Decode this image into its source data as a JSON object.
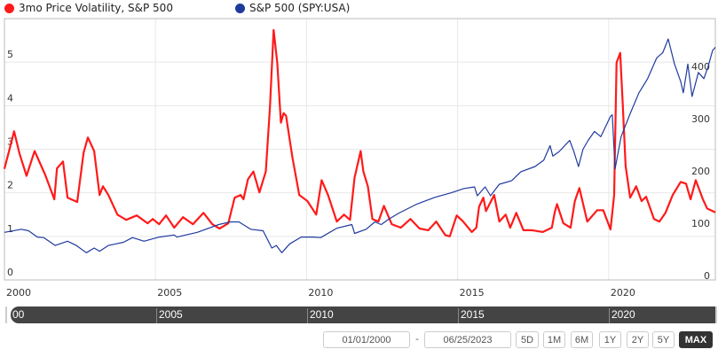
{
  "legend": [
    {
      "label": "3mo Price Volatility, S&P 500",
      "color": "#ff1a1a"
    },
    {
      "label": "S&P 500 (SPY:USA)",
      "color": "#1f3a9e"
    }
  ],
  "navigator": {
    "labels": [
      "00",
      "2005",
      "2010",
      "2015",
      "2020"
    ]
  },
  "controls": {
    "start_date": "01/01/2000",
    "separator": "-",
    "end_date": "06/25/2023",
    "ranges": [
      "5D",
      "1M",
      "6M",
      "1Y",
      "2Y",
      "5Y",
      "MAX"
    ],
    "active_range": "MAX"
  },
  "chart_data": {
    "type": "line",
    "grid": true,
    "xlim": [
      2000,
      2023.53
    ],
    "x_ticks": [
      2000,
      2005,
      2010,
      2015,
      2020
    ],
    "x_tick_labels": [
      "2000",
      "2005",
      "2010",
      "2015",
      "2020"
    ],
    "y_left": {
      "lim": [
        0,
        6
      ],
      "ticks": [
        0,
        1,
        2,
        3,
        4,
        5
      ],
      "tick_labels": [
        "0",
        "1",
        "2",
        "3",
        "4",
        "5"
      ]
    },
    "y_right": {
      "lim": [
        0,
        500
      ],
      "ticks": [
        0,
        100,
        200,
        300,
        400
      ],
      "tick_labels": [
        "0",
        "100",
        "200",
        "300",
        "400"
      ]
    },
    "series": [
      {
        "name": "3mo Price Volatility, S&P 500",
        "axis": "left",
        "color": "#ff1a1a",
        "points": [
          [
            2000.0,
            2.55
          ],
          [
            2000.32,
            3.41
          ],
          [
            2000.5,
            2.9
          ],
          [
            2000.73,
            2.39
          ],
          [
            2001.0,
            2.96
          ],
          [
            2001.35,
            2.41
          ],
          [
            2001.65,
            1.85
          ],
          [
            2001.74,
            2.56
          ],
          [
            2001.94,
            2.72
          ],
          [
            2002.09,
            1.89
          ],
          [
            2002.41,
            1.79
          ],
          [
            2002.62,
            2.92
          ],
          [
            2002.76,
            3.27
          ],
          [
            2002.97,
            2.96
          ],
          [
            2003.15,
            1.95
          ],
          [
            2003.26,
            2.15
          ],
          [
            2003.44,
            1.95
          ],
          [
            2003.74,
            1.5
          ],
          [
            2004.03,
            1.38
          ],
          [
            2004.38,
            1.48
          ],
          [
            2004.74,
            1.3
          ],
          [
            2004.91,
            1.4
          ],
          [
            2005.12,
            1.28
          ],
          [
            2005.35,
            1.48
          ],
          [
            2005.62,
            1.2
          ],
          [
            2005.91,
            1.44
          ],
          [
            2006.24,
            1.28
          ],
          [
            2006.59,
            1.54
          ],
          [
            2006.88,
            1.28
          ],
          [
            2007.12,
            1.18
          ],
          [
            2007.41,
            1.3
          ],
          [
            2007.62,
            1.89
          ],
          [
            2007.82,
            1.95
          ],
          [
            2007.91,
            1.85
          ],
          [
            2008.06,
            2.31
          ],
          [
            2008.24,
            2.49
          ],
          [
            2008.44,
            2.01
          ],
          [
            2008.65,
            2.49
          ],
          [
            2008.79,
            3.98
          ],
          [
            2008.91,
            5.74
          ],
          [
            2009.03,
            4.99
          ],
          [
            2009.15,
            3.61
          ],
          [
            2009.24,
            3.83
          ],
          [
            2009.32,
            3.77
          ],
          [
            2009.53,
            2.82
          ],
          [
            2009.76,
            1.95
          ],
          [
            2010.03,
            1.81
          ],
          [
            2010.32,
            1.5
          ],
          [
            2010.5,
            2.29
          ],
          [
            2010.71,
            1.95
          ],
          [
            2011.0,
            1.34
          ],
          [
            2011.24,
            1.5
          ],
          [
            2011.44,
            1.38
          ],
          [
            2011.59,
            2.35
          ],
          [
            2011.79,
            2.96
          ],
          [
            2011.88,
            2.49
          ],
          [
            2012.03,
            2.15
          ],
          [
            2012.18,
            1.4
          ],
          [
            2012.38,
            1.34
          ],
          [
            2012.56,
            1.7
          ],
          [
            2012.82,
            1.28
          ],
          [
            2013.12,
            1.2
          ],
          [
            2013.44,
            1.4
          ],
          [
            2013.74,
            1.18
          ],
          [
            2014.03,
            1.14
          ],
          [
            2014.29,
            1.34
          ],
          [
            2014.59,
            1.03
          ],
          [
            2014.74,
            1.0
          ],
          [
            2014.97,
            1.48
          ],
          [
            2015.18,
            1.34
          ],
          [
            2015.47,
            1.1
          ],
          [
            2015.62,
            1.2
          ],
          [
            2015.71,
            1.68
          ],
          [
            2015.85,
            1.89
          ],
          [
            2015.94,
            1.58
          ],
          [
            2016.21,
            1.95
          ],
          [
            2016.38,
            1.34
          ],
          [
            2016.59,
            1.5
          ],
          [
            2016.74,
            1.2
          ],
          [
            2016.94,
            1.54
          ],
          [
            2017.18,
            1.14
          ],
          [
            2017.47,
            1.14
          ],
          [
            2017.82,
            1.1
          ],
          [
            2018.12,
            1.2
          ],
          [
            2018.21,
            1.54
          ],
          [
            2018.29,
            1.74
          ],
          [
            2018.5,
            1.3
          ],
          [
            2018.74,
            1.2
          ],
          [
            2018.88,
            1.81
          ],
          [
            2019.03,
            2.11
          ],
          [
            2019.29,
            1.34
          ],
          [
            2019.62,
            1.6
          ],
          [
            2019.82,
            1.6
          ],
          [
            2020.06,
            1.16
          ],
          [
            2020.18,
            1.95
          ],
          [
            2020.26,
            4.99
          ],
          [
            2020.38,
            5.21
          ],
          [
            2020.47,
            3.98
          ],
          [
            2020.56,
            2.62
          ],
          [
            2020.71,
            1.89
          ],
          [
            2020.91,
            2.15
          ],
          [
            2021.09,
            1.81
          ],
          [
            2021.24,
            1.91
          ],
          [
            2021.5,
            1.4
          ],
          [
            2021.68,
            1.34
          ],
          [
            2021.88,
            1.54
          ],
          [
            2022.12,
            1.95
          ],
          [
            2022.38,
            2.25
          ],
          [
            2022.56,
            2.21
          ],
          [
            2022.71,
            1.85
          ],
          [
            2022.88,
            2.29
          ],
          [
            2023.12,
            1.85
          ],
          [
            2023.26,
            1.64
          ],
          [
            2023.44,
            1.58
          ],
          [
            2023.53,
            1.55
          ]
        ]
      },
      {
        "name": "S&P 500 (SPY:USA)",
        "axis": "right",
        "color": "#1f3a9e",
        "points": [
          [
            2000.0,
            91
          ],
          [
            2000.56,
            97
          ],
          [
            2000.8,
            94
          ],
          [
            2001.09,
            82
          ],
          [
            2001.3,
            81
          ],
          [
            2001.68,
            66
          ],
          [
            2002.09,
            74
          ],
          [
            2002.38,
            66
          ],
          [
            2002.71,
            52
          ],
          [
            2002.97,
            61
          ],
          [
            2003.15,
            55
          ],
          [
            2003.44,
            66
          ],
          [
            2003.94,
            72
          ],
          [
            2004.24,
            81
          ],
          [
            2004.62,
            74
          ],
          [
            2005.12,
            82
          ],
          [
            2005.62,
            86
          ],
          [
            2005.71,
            82
          ],
          [
            2006.38,
            91
          ],
          [
            2007.09,
            106
          ],
          [
            2007.47,
            111
          ],
          [
            2007.76,
            111
          ],
          [
            2008.15,
            97
          ],
          [
            2008.56,
            94
          ],
          [
            2008.85,
            61
          ],
          [
            2009.0,
            66
          ],
          [
            2009.18,
            52
          ],
          [
            2009.44,
            69
          ],
          [
            2009.82,
            82
          ],
          [
            2010.21,
            82
          ],
          [
            2010.47,
            81
          ],
          [
            2011.0,
            99
          ],
          [
            2011.5,
            106
          ],
          [
            2011.59,
            89
          ],
          [
            2011.97,
            97
          ],
          [
            2012.26,
            111
          ],
          [
            2012.47,
            106
          ],
          [
            2012.71,
            116
          ],
          [
            2013.06,
            128
          ],
          [
            2013.65,
            145
          ],
          [
            2014.24,
            158
          ],
          [
            2014.74,
            166
          ],
          [
            2015.21,
            175
          ],
          [
            2015.56,
            178
          ],
          [
            2015.65,
            161
          ],
          [
            2015.91,
            178
          ],
          [
            2016.09,
            161
          ],
          [
            2016.38,
            183
          ],
          [
            2016.79,
            190
          ],
          [
            2017.09,
            207
          ],
          [
            2017.56,
            217
          ],
          [
            2017.85,
            229
          ],
          [
            2018.06,
            257
          ],
          [
            2018.15,
            237
          ],
          [
            2018.35,
            245
          ],
          [
            2018.71,
            267
          ],
          [
            2018.85,
            245
          ],
          [
            2019.0,
            217
          ],
          [
            2019.15,
            250
          ],
          [
            2019.32,
            267
          ],
          [
            2019.53,
            284
          ],
          [
            2019.74,
            274
          ],
          [
            2020.06,
            313
          ],
          [
            2020.12,
            316
          ],
          [
            2020.21,
            212
          ],
          [
            2020.41,
            274
          ],
          [
            2020.71,
            318
          ],
          [
            2021.0,
            358
          ],
          [
            2021.29,
            385
          ],
          [
            2021.59,
            425
          ],
          [
            2021.79,
            435
          ],
          [
            2021.97,
            461
          ],
          [
            2022.18,
            413
          ],
          [
            2022.38,
            380
          ],
          [
            2022.47,
            358
          ],
          [
            2022.62,
            413
          ],
          [
            2022.76,
            351
          ],
          [
            2022.97,
            397
          ],
          [
            2023.15,
            385
          ],
          [
            2023.29,
            408
          ],
          [
            2023.44,
            439
          ],
          [
            2023.53,
            445
          ]
        ]
      }
    ]
  }
}
